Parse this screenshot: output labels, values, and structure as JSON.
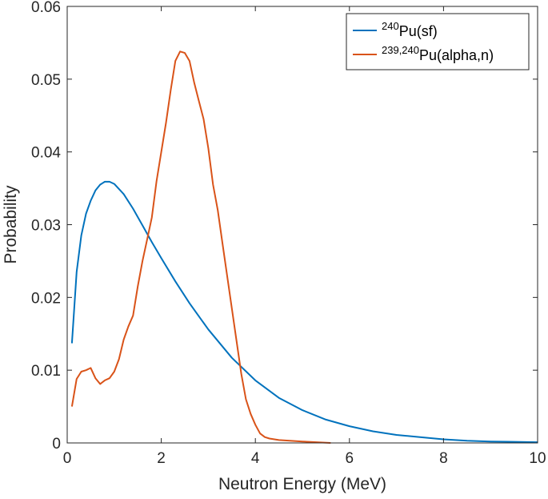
{
  "chart_data": {
    "type": "line",
    "title": "",
    "xlabel": "Neutron Energy (MeV)",
    "ylabel": "Probability",
    "xlim": [
      0,
      10
    ],
    "ylim": [
      0,
      0.06
    ],
    "xticks": [
      0,
      2,
      4,
      6,
      8,
      10
    ],
    "xtick_labels": [
      "0",
      "2",
      "4",
      "6",
      "8",
      "10"
    ],
    "yticks": [
      0,
      0.01,
      0.02,
      0.03,
      0.04,
      0.05,
      0.06
    ],
    "ytick_labels": [
      "0",
      "0.01",
      "0.02",
      "0.03",
      "0.04",
      "0.05",
      "0.06"
    ],
    "grid": false,
    "legend_position": "top-right",
    "series": [
      {
        "name_sup": "240",
        "name_main": "Pu(sf)",
        "color": "#0072BD",
        "x": [
          0.1,
          0.2,
          0.3,
          0.4,
          0.5,
          0.6,
          0.7,
          0.8,
          0.9,
          1.0,
          1.2,
          1.4,
          1.6,
          1.8,
          2.0,
          2.3,
          2.6,
          3.0,
          3.5,
          4.0,
          4.5,
          5.0,
          5.5,
          6.0,
          6.5,
          7.0,
          7.5,
          8.0,
          8.5,
          9.0,
          9.5,
          10.0
        ],
        "y": [
          0.0137,
          0.0235,
          0.0285,
          0.0315,
          0.0333,
          0.0347,
          0.0355,
          0.0359,
          0.0359,
          0.0356,
          0.0342,
          0.0322,
          0.0299,
          0.0276,
          0.0254,
          0.0222,
          0.0192,
          0.0156,
          0.0117,
          0.0086,
          0.0062,
          0.0045,
          0.0032,
          0.0023,
          0.0016,
          0.0011,
          0.0008,
          0.0005,
          0.0003,
          0.0002,
          0.00015,
          0.0001
        ]
      },
      {
        "name_sup": "239,240",
        "name_main": "Pu(alpha,n)",
        "color": "#D95319",
        "x": [
          0.1,
          0.2,
          0.3,
          0.4,
          0.5,
          0.6,
          0.7,
          0.8,
          0.9,
          1.0,
          1.1,
          1.2,
          1.3,
          1.4,
          1.5,
          1.6,
          1.7,
          1.8,
          1.9,
          2.0,
          2.1,
          2.2,
          2.3,
          2.4,
          2.5,
          2.6,
          2.7,
          2.8,
          2.9,
          3.0,
          3.1,
          3.2,
          3.3,
          3.4,
          3.5,
          3.6,
          3.7,
          3.8,
          3.9,
          4.0,
          4.1,
          4.2,
          4.3,
          4.5,
          5.0,
          5.6
        ],
        "y": [
          0.005,
          0.0088,
          0.0098,
          0.01,
          0.0103,
          0.0089,
          0.0081,
          0.0086,
          0.0089,
          0.0098,
          0.0115,
          0.0142,
          0.016,
          0.0175,
          0.0215,
          0.025,
          0.028,
          0.031,
          0.036,
          0.04,
          0.044,
          0.0485,
          0.0525,
          0.0538,
          0.0536,
          0.0525,
          0.0495,
          0.047,
          0.0445,
          0.0405,
          0.0355,
          0.032,
          0.0275,
          0.023,
          0.0185,
          0.014,
          0.0095,
          0.006,
          0.004,
          0.0025,
          0.0013,
          0.0008,
          0.0006,
          0.0004,
          0.0002,
          0.0
        ]
      }
    ]
  }
}
